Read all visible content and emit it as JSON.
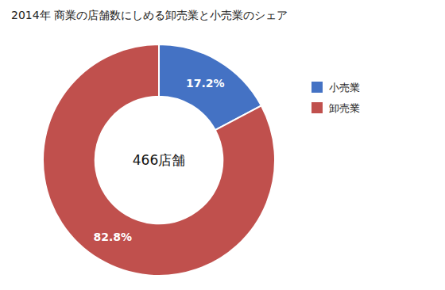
{
  "chart_data": {
    "type": "donut",
    "title": "2014年 商業の店舗数にしめる卸売業と小売業のシェア",
    "categories": [
      "小売業",
      "卸売業"
    ],
    "values": [
      17.2,
      82.8
    ],
    "value_labels": [
      "17.2%",
      "82.8%"
    ],
    "data_labels": true,
    "colors": [
      "#4472C4",
      "#C0504D"
    ],
    "annotations": [
      "466店舗"
    ],
    "legend": "right"
  }
}
